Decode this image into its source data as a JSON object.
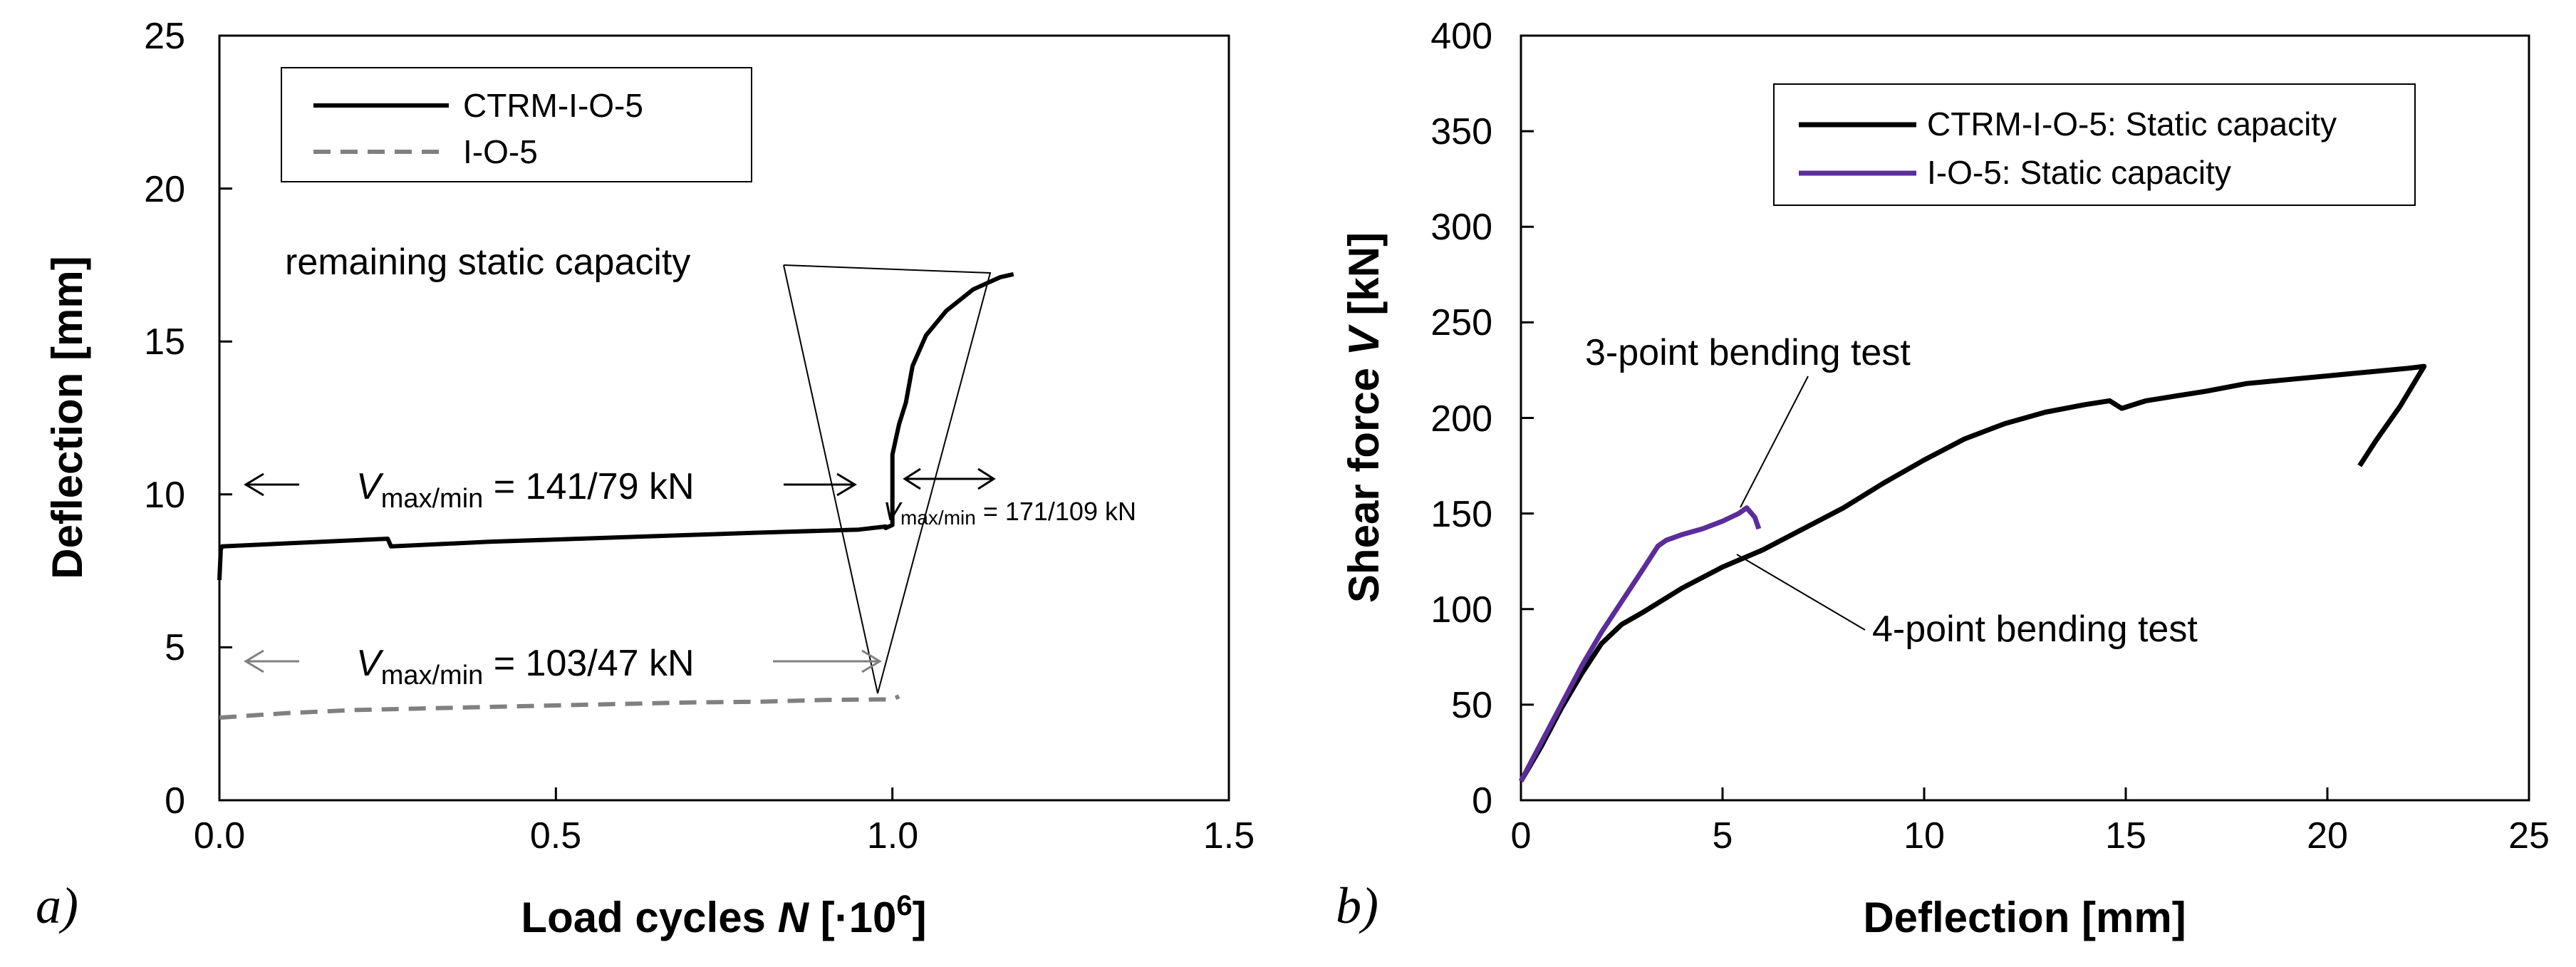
{
  "chart_data": [
    {
      "type": "line",
      "panel_label": "a)",
      "xlabel": "Load cycles",
      "xlabel_var": "N",
      "xlabel_unit_open": " [·10",
      "xlabel_unit_sup": "6",
      "xlabel_unit_close": "]",
      "ylabel": "Deflection [mm]",
      "xlim": [
        0,
        1.5
      ],
      "ylim": [
        0,
        25
      ],
      "xticks": [
        0,
        0.5,
        1.0,
        1.5
      ],
      "xtick_labels": [
        "0.0",
        "0.5",
        "1.0",
        "1.5"
      ],
      "yticks": [
        0,
        5,
        10,
        15,
        20,
        25
      ],
      "ytick_labels": [
        "0",
        "5",
        "10",
        "15",
        "20",
        "25"
      ],
      "legend": [
        "CTRM-I-O-5",
        "I-O-5"
      ],
      "series": [
        {
          "name": "CTRM-I-O-5",
          "color": "#000000",
          "dash": "solid",
          "x": [
            0.0,
            0.002,
            0.004,
            0.1,
            0.25,
            0.255,
            0.4,
            0.6,
            0.8,
            0.95,
            0.99,
            0.99,
            1.0,
            1.0,
            1.01,
            1.02,
            1.03,
            1.05,
            1.08,
            1.12,
            1.16,
            1.18
          ],
          "y": [
            7.2,
            8.2,
            8.3,
            8.4,
            8.55,
            8.3,
            8.45,
            8.6,
            8.75,
            8.85,
            8.95,
            8.9,
            9.0,
            11.3,
            12.3,
            13.0,
            14.2,
            15.2,
            16.0,
            16.7,
            17.1,
            17.2
          ]
        },
        {
          "name": "I-O-5",
          "color": "#808080",
          "dash": "dashed",
          "x": [
            0.0,
            0.1,
            0.2,
            0.3,
            0.4,
            0.5,
            0.6,
            0.7,
            0.8,
            0.9,
            1.0,
            1.01
          ],
          "y": [
            2.7,
            2.85,
            2.95,
            3.0,
            3.05,
            3.1,
            3.15,
            3.2,
            3.22,
            3.28,
            3.3,
            3.4
          ]
        }
      ],
      "annotations": {
        "remaining": "remaining static capacity",
        "v1_pre": "V",
        "v1_sub": "max/min",
        "v1_post": " = 141/79 kN",
        "v2_pre": "V",
        "v2_sub": "max/min",
        "v2_post": " = 171/109 kN",
        "v3_pre": "V",
        "v3_sub": "max/min",
        "v3_post": " = 103/47 kN"
      }
    },
    {
      "type": "line",
      "panel_label": "b)",
      "xlabel": "Deflection [mm]",
      "ylabel_pre": "Shear force",
      "ylabel_var": "V",
      "ylabel_post": " [kN]",
      "xlim": [
        0,
        25
      ],
      "ylim": [
        0,
        400
      ],
      "xticks": [
        0,
        5,
        10,
        15,
        20,
        25
      ],
      "xtick_labels": [
        "0",
        "5",
        "10",
        "15",
        "20",
        "25"
      ],
      "yticks": [
        0,
        50,
        100,
        150,
        200,
        250,
        300,
        350,
        400
      ],
      "ytick_labels": [
        "0",
        "50",
        "100",
        "150",
        "200",
        "250",
        "300",
        "350",
        "400"
      ],
      "legend": [
        "CTRM-I-O-5: Static capacity",
        "I-O-5: Static capacity"
      ],
      "series": [
        {
          "name": "CTRM-I-O-5: Static capacity",
          "color": "#000000",
          "dash": "solid",
          "x": [
            0,
            0.5,
            1,
            1.5,
            2,
            2.5,
            3,
            4,
            5,
            6,
            7,
            8,
            9,
            10,
            11,
            12,
            13,
            14,
            14.6,
            14.9,
            15.5,
            17,
            18,
            19,
            20,
            21,
            22,
            22.4,
            21.8,
            21.2,
            20.8
          ],
          "y": [
            10,
            28,
            48,
            66,
            82,
            92,
            98,
            111,
            122,
            131,
            142,
            153,
            166,
            178,
            189,
            197,
            203,
            207,
            209,
            205,
            209,
            214,
            218,
            220,
            222,
            224,
            226,
            227,
            206,
            188,
            175
          ]
        },
        {
          "name": "I-O-5: Static capacity",
          "color": "#5b2c9a",
          "dash": "solid",
          "x": [
            0,
            0.5,
            1,
            1.5,
            2,
            2.5,
            3,
            3.4,
            3.6,
            4,
            4.5,
            5,
            5.4,
            5.6,
            5.8,
            5.9
          ],
          "y": [
            10,
            30,
            50,
            70,
            88,
            104,
            120,
            133,
            136,
            139,
            142,
            146,
            150,
            153,
            148,
            142
          ]
        }
      ],
      "annotations": {
        "three_point": "3-point bending test",
        "four_point": "4-point bending test"
      }
    }
  ]
}
